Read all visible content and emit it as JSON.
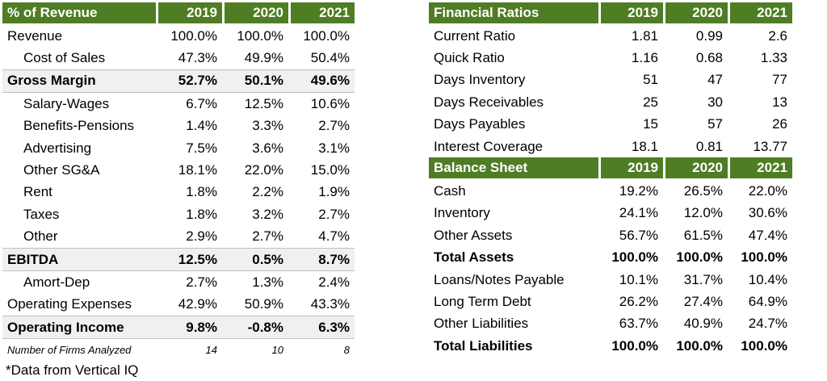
{
  "income": {
    "headers": [
      "% of Revenue",
      "2019",
      "2020",
      "2021"
    ],
    "rows": [
      {
        "label": "Revenue",
        "v": [
          "100.0%",
          "100.0%",
          "100.0%"
        ],
        "style": "plain"
      },
      {
        "label": "Cost of Sales",
        "v": [
          "47.3%",
          "49.9%",
          "50.4%"
        ],
        "style": "indent"
      },
      {
        "label": "Gross Margin",
        "v": [
          "52.7%",
          "50.1%",
          "49.6%"
        ],
        "style": "bold"
      },
      {
        "label": "Salary-Wages",
        "v": [
          "6.7%",
          "12.5%",
          "10.6%"
        ],
        "style": "indent"
      },
      {
        "label": "Benefits-Pensions",
        "v": [
          "1.4%",
          "3.3%",
          "2.7%"
        ],
        "style": "indent"
      },
      {
        "label": "Advertising",
        "v": [
          "7.5%",
          "3.6%",
          "3.1%"
        ],
        "style": "indent"
      },
      {
        "label": "Other SG&A",
        "v": [
          "18.1%",
          "22.0%",
          "15.0%"
        ],
        "style": "indent"
      },
      {
        "label": "Rent",
        "v": [
          "1.8%",
          "2.2%",
          "1.9%"
        ],
        "style": "indent"
      },
      {
        "label": "Taxes",
        "v": [
          "1.8%",
          "3.2%",
          "2.7%"
        ],
        "style": "indent"
      },
      {
        "label": "Other",
        "v": [
          "2.9%",
          "2.7%",
          "4.7%"
        ],
        "style": "indent"
      },
      {
        "label": "EBITDA",
        "v": [
          "12.5%",
          "0.5%",
          "8.7%"
        ],
        "style": "bold"
      },
      {
        "label": "Amort-Dep",
        "v": [
          "2.7%",
          "1.3%",
          "2.4%"
        ],
        "style": "indent"
      },
      {
        "label": "Operating Expenses",
        "v": [
          "42.9%",
          "50.9%",
          "43.3%"
        ],
        "style": "plain"
      },
      {
        "label": "Operating Income",
        "v": [
          "9.8%",
          "-0.8%",
          "6.3%"
        ],
        "style": "bold"
      }
    ],
    "note": {
      "label": "Number of Firms Analyzed",
      "v": [
        "14",
        "10",
        "8"
      ]
    }
  },
  "ratios": {
    "headers": [
      "Financial Ratios",
      "2019",
      "2020",
      "2021"
    ],
    "rows": [
      {
        "label": "Current Ratio",
        "v": [
          "1.81",
          "0.99",
          "2.6"
        ]
      },
      {
        "label": "Quick Ratio",
        "v": [
          "1.16",
          "0.68",
          "1.33"
        ]
      },
      {
        "label": "Days Inventory",
        "v": [
          "51",
          "47",
          "77"
        ]
      },
      {
        "label": "Days Receivables",
        "v": [
          "25",
          "30",
          "13"
        ]
      },
      {
        "label": "Days Payables",
        "v": [
          "15",
          "57",
          "26"
        ]
      },
      {
        "label": "Interest Coverage",
        "v": [
          "18.1",
          "0.81",
          "13.77"
        ]
      }
    ]
  },
  "balance": {
    "headers": [
      "Balance Sheet",
      "2019",
      "2020",
      "2021"
    ],
    "rows": [
      {
        "label": "Cash",
        "v": [
          "19.2%",
          "26.5%",
          "22.0%"
        ],
        "style": "plain"
      },
      {
        "label": "Inventory",
        "v": [
          "24.1%",
          "12.0%",
          "30.6%"
        ],
        "style": "plain"
      },
      {
        "label": "Other Assets",
        "v": [
          "56.7%",
          "61.5%",
          "47.4%"
        ],
        "style": "plain"
      },
      {
        "label": "Total Assets",
        "v": [
          "100.0%",
          "100.0%",
          "100.0%"
        ],
        "style": "bold"
      },
      {
        "label": "Loans/Notes Payable",
        "v": [
          "10.1%",
          "31.7%",
          "10.4%"
        ],
        "style": "plain"
      },
      {
        "label": "Long Term Debt",
        "v": [
          "26.2%",
          "27.4%",
          "64.9%"
        ],
        "style": "plain"
      },
      {
        "label": "Other Liabilities",
        "v": [
          "63.7%",
          "40.9%",
          "24.7%"
        ],
        "style": "plain"
      },
      {
        "label": "Total Liabilities",
        "v": [
          "100.0%",
          "100.0%",
          "100.0%"
        ],
        "style": "bold"
      }
    ]
  },
  "footnote": "*Data from Vertical IQ",
  "colors": {
    "header_bg": "#4e7d24",
    "header_text": "#ffffff",
    "bold_row_bg": "#f0f0f0"
  }
}
